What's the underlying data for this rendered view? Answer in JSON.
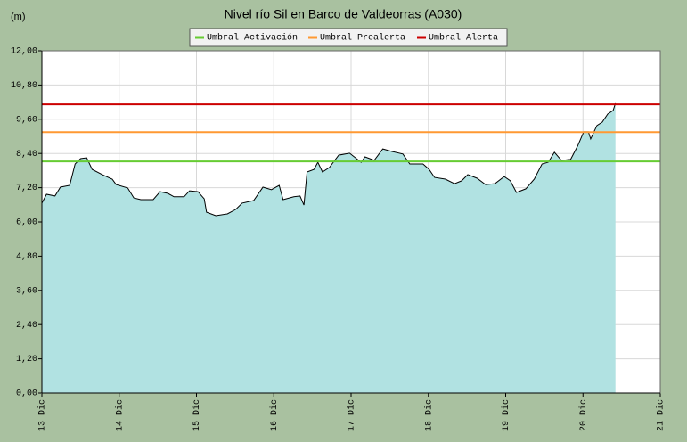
{
  "chart_data": {
    "type": "area",
    "title": "Nivel río Sil en Barco de Valdeorras  (A030)",
    "ylabel": "(m)",
    "x": [
      13.0,
      13.06,
      13.17,
      13.24,
      13.36,
      13.43,
      13.5,
      13.58,
      13.65,
      13.78,
      13.91,
      13.96,
      14.11,
      14.19,
      14.28,
      14.44,
      14.53,
      14.63,
      14.71,
      14.84,
      14.91,
      15.02,
      15.1,
      15.13,
      15.25,
      15.4,
      15.51,
      15.59,
      15.74,
      15.86,
      15.97,
      16.07,
      16.12,
      16.26,
      16.34,
      16.39,
      16.43,
      16.52,
      16.57,
      16.63,
      16.72,
      16.84,
      16.98,
      17.07,
      17.13,
      17.18,
      17.3,
      17.41,
      17.53,
      17.67,
      17.76,
      17.93,
      18.01,
      18.08,
      18.22,
      18.34,
      18.43,
      18.51,
      18.63,
      18.74,
      18.86,
      18.98,
      19.06,
      19.14,
      19.26,
      19.37,
      19.47,
      19.55,
      19.63,
      19.72,
      19.84,
      19.93,
      20.01,
      20.07,
      20.1,
      20.18,
      20.25,
      20.32,
      20.39,
      20.42
    ],
    "values": [
      6.66,
      6.97,
      6.91,
      7.22,
      7.28,
      8.03,
      8.22,
      8.25,
      7.84,
      7.66,
      7.5,
      7.31,
      7.19,
      6.84,
      6.78,
      6.78,
      7.06,
      7.0,
      6.88,
      6.88,
      7.09,
      7.06,
      6.81,
      6.34,
      6.22,
      6.28,
      6.44,
      6.66,
      6.75,
      7.22,
      7.13,
      7.28,
      6.78,
      6.88,
      6.91,
      6.59,
      7.75,
      7.84,
      8.09,
      7.75,
      7.91,
      8.34,
      8.41,
      8.22,
      8.09,
      8.28,
      8.16,
      8.56,
      8.47,
      8.38,
      8.03,
      8.03,
      7.84,
      7.56,
      7.5,
      7.34,
      7.44,
      7.66,
      7.53,
      7.31,
      7.34,
      7.59,
      7.44,
      7.03,
      7.16,
      7.5,
      8.03,
      8.09,
      8.44,
      8.16,
      8.19,
      8.66,
      9.16,
      9.16,
      8.91,
      9.38,
      9.5,
      9.78,
      9.91,
      10.16
    ],
    "line_color": "#000000",
    "fill_color": "#b1e2e2",
    "thresholds": [
      {
        "name": "Umbral Activación",
        "color": "#66cc33",
        "value": 8.12
      },
      {
        "name": "Umbral Prealerta",
        "color": "#ff9933",
        "value": 9.15
      },
      {
        "name": "Umbral Alerta",
        "color": "#cc0000",
        "value": 10.12
      }
    ],
    "xlim": [
      13,
      21
    ],
    "xticks": [
      {
        "value": 13,
        "label": "13 Dic"
      },
      {
        "value": 14,
        "label": "14 Dic"
      },
      {
        "value": 15,
        "label": "15 Dic"
      },
      {
        "value": 16,
        "label": "16 Dic"
      },
      {
        "value": 17,
        "label": "17 Dic"
      },
      {
        "value": 18,
        "label": "18 Dic"
      },
      {
        "value": 19,
        "label": "19 Dic"
      },
      {
        "value": 20,
        "label": "20 Dic"
      },
      {
        "value": 21,
        "label": "21 Dic"
      }
    ],
    "ylim": [
      0,
      12
    ],
    "yticks": [
      {
        "value": 0,
        "label": "0,00"
      },
      {
        "value": 1.2,
        "label": "1,20"
      },
      {
        "value": 2.4,
        "label": "2,40"
      },
      {
        "value": 3.6,
        "label": "3,60"
      },
      {
        "value": 4.8,
        "label": "4,80"
      },
      {
        "value": 6,
        "label": "6,00"
      },
      {
        "value": 7.2,
        "label": "7,20"
      },
      {
        "value": 8.4,
        "label": "8,40"
      },
      {
        "value": 9.6,
        "label": "9,60"
      },
      {
        "value": 10.8,
        "label": "10,80"
      },
      {
        "value": 12,
        "label": "12,00"
      }
    ],
    "grid": true
  }
}
